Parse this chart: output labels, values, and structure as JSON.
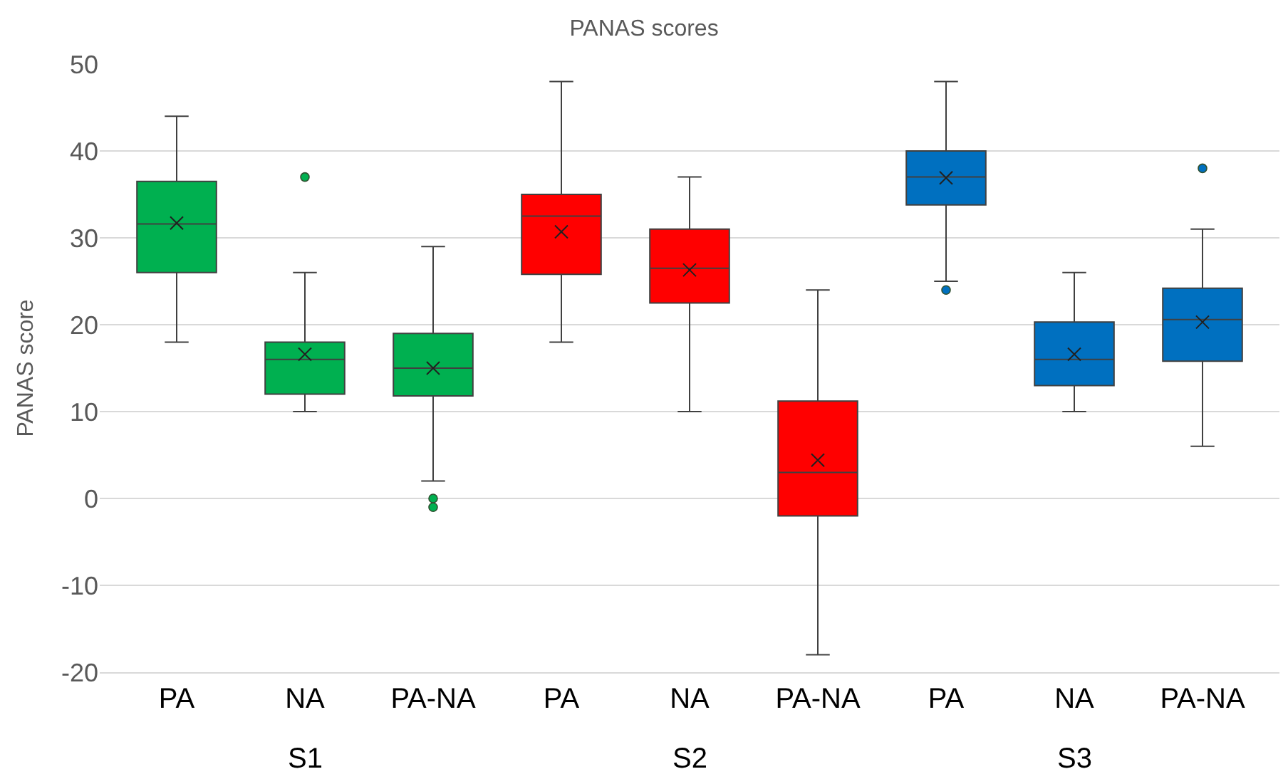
{
  "chart_data": {
    "type": "box",
    "title": "PANAS scores",
    "ylabel": "PANAS score",
    "categories": [
      "PA",
      "NA",
      "PA-NA",
      "PA",
      "NA",
      "PA-NA",
      "PA",
      "NA",
      "PA-NA"
    ],
    "annotations": [
      "S1",
      "S2",
      "S3"
    ],
    "ylim": [
      -20,
      50
    ],
    "yticks": [
      -20,
      -10,
      0,
      10,
      20,
      30,
      40,
      50
    ],
    "grid": "y",
    "series": [
      {
        "color": "#00b050",
        "boxes": [
          {
            "low": 18,
            "q1": 26,
            "median": 31.6,
            "q3": 36.5,
            "high": 44,
            "mean": 31.7
          },
          {
            "low": 10,
            "q1": 12,
            "median": 16,
            "q3": 18,
            "high": 26,
            "mean": 16.6,
            "outliers": [
              37
            ]
          },
          {
            "low": 2,
            "q1": 11.8,
            "median": 15,
            "q3": 19,
            "high": 29,
            "mean": 15,
            "outliers": [
              0,
              -1
            ]
          },
          null,
          null,
          null,
          null,
          null,
          null
        ]
      },
      {
        "color": "#ff0000",
        "boxes": [
          null,
          null,
          null,
          {
            "low": 18,
            "q1": 25.8,
            "median": 32.5,
            "q3": 35,
            "high": 48,
            "mean": 30.7
          },
          {
            "low": 10,
            "q1": 22.5,
            "median": 26.5,
            "q3": 31,
            "high": 37,
            "mean": 26.3
          },
          {
            "low": -18,
            "q1": -2,
            "median": 3,
            "q3": 11.2,
            "high": 24,
            "mean": 4.4
          },
          null,
          null,
          null
        ]
      },
      {
        "color": "#0070c0",
        "boxes": [
          null,
          null,
          null,
          null,
          null,
          null,
          {
            "low": 25,
            "q1": 33.8,
            "median": 37,
            "q3": 40,
            "high": 48,
            "mean": 36.9,
            "outliers": [
              24
            ]
          },
          {
            "low": 10,
            "q1": 13,
            "median": 16,
            "q3": 20.3,
            "high": 26,
            "mean": 16.6
          },
          {
            "low": 6,
            "q1": 15.8,
            "median": 20.6,
            "q3": 24.2,
            "high": 31,
            "mean": 20.3,
            "outliers": [
              38
            ]
          }
        ]
      }
    ]
  }
}
